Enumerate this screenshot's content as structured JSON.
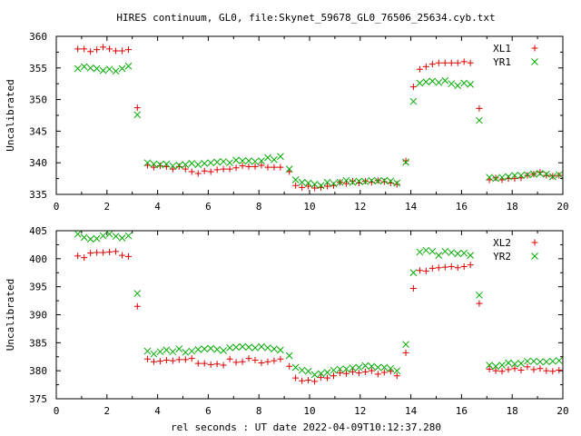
{
  "title": "HIRES continuum, GL0, file:Skynet_59678_GL0_76506_25634.cyb.txt",
  "xlabel": "rel seconds : UT date 2022-04-09T10:12:37.280",
  "colors": {
    "red": "#dd0000",
    "green": "#00aa00"
  },
  "chart_data": [
    {
      "type": "scatter",
      "ylabel": "Uncalibrated",
      "xlim": [
        0,
        20
      ],
      "ylim": [
        335,
        360
      ],
      "xticks": [
        "0",
        "2",
        "4",
        "6",
        "8",
        "10",
        "12",
        "14",
        "16",
        "18",
        "20"
      ],
      "yticks": [
        "335",
        "340",
        "345",
        "350",
        "355",
        "360"
      ],
      "legend_position": "top-right",
      "series": [
        {
          "name": "XL1",
          "color": "#dd0000",
          "marker": "plus",
          "x": [
            0.85,
            1.1,
            1.35,
            1.6,
            1.85,
            2.1,
            2.35,
            2.6,
            2.85,
            3.2,
            3.6,
            3.85,
            4.1,
            4.35,
            4.6,
            4.85,
            5.1,
            5.35,
            5.6,
            5.85,
            6.1,
            6.35,
            6.6,
            6.85,
            7.1,
            7.35,
            7.6,
            7.85,
            8.1,
            8.35,
            8.6,
            8.85,
            9.2,
            9.45,
            9.7,
            9.95,
            10.2,
            10.45,
            10.7,
            10.95,
            11.2,
            11.45,
            11.7,
            11.95,
            12.2,
            12.45,
            12.7,
            12.95,
            13.2,
            13.45,
            13.8,
            14.1,
            14.35,
            14.6,
            14.85,
            15.1,
            15.35,
            15.6,
            15.85,
            16.1,
            16.35,
            16.7,
            17.1,
            17.35,
            17.6,
            17.85,
            18.1,
            18.35,
            18.6,
            18.85,
            19.1,
            19.35,
            19.6,
            19.85
          ],
          "y": [
            358.0,
            358.0,
            357.6,
            357.9,
            358.3,
            358.0,
            357.7,
            357.7,
            357.9,
            348.7,
            339.6,
            339.3,
            339.5,
            339.4,
            339.0,
            339.4,
            339.0,
            338.6,
            338.3,
            338.7,
            338.6,
            338.9,
            339.0,
            339.0,
            339.2,
            339.5,
            339.4,
            339.4,
            339.6,
            339.3,
            339.3,
            339.3,
            338.6,
            336.4,
            336.1,
            336.3,
            336.0,
            336.1,
            336.3,
            336.4,
            336.9,
            336.7,
            337.1,
            336.8,
            337.1,
            336.9,
            337.2,
            337.0,
            336.8,
            336.6,
            340.3,
            352.0,
            354.8,
            355.2,
            355.6,
            355.8,
            355.8,
            355.8,
            355.8,
            356.0,
            355.8,
            348.6,
            337.3,
            337.6,
            337.3,
            337.5,
            337.5,
            337.6,
            338.0,
            338.2,
            338.5,
            338.0,
            337.9,
            338.0
          ]
        },
        {
          "name": "YR1",
          "color": "#00aa00",
          "marker": "cross",
          "x": [
            0.85,
            1.1,
            1.35,
            1.6,
            1.85,
            2.1,
            2.35,
            2.6,
            2.85,
            3.2,
            3.6,
            3.85,
            4.1,
            4.35,
            4.6,
            4.85,
            5.1,
            5.35,
            5.6,
            5.85,
            6.1,
            6.35,
            6.6,
            6.85,
            7.1,
            7.35,
            7.6,
            7.85,
            8.1,
            8.35,
            8.6,
            8.85,
            9.2,
            9.45,
            9.7,
            9.95,
            10.2,
            10.45,
            10.7,
            10.95,
            11.2,
            11.45,
            11.7,
            11.95,
            12.2,
            12.45,
            12.7,
            12.95,
            13.2,
            13.45,
            13.8,
            14.1,
            14.35,
            14.6,
            14.85,
            15.1,
            15.35,
            15.6,
            15.85,
            16.1,
            16.35,
            16.7,
            17.1,
            17.35,
            17.6,
            17.85,
            18.1,
            18.35,
            18.6,
            18.85,
            19.1,
            19.35,
            19.6,
            19.85
          ],
          "y": [
            354.9,
            355.2,
            355.0,
            354.9,
            354.6,
            354.8,
            354.5,
            354.9,
            355.3,
            347.6,
            340.0,
            339.8,
            339.7,
            339.8,
            339.5,
            339.6,
            339.7,
            339.9,
            339.7,
            339.9,
            340.0,
            340.1,
            340.2,
            340.0,
            340.4,
            340.3,
            340.3,
            340.2,
            340.3,
            340.8,
            340.5,
            341.0,
            339.0,
            337.3,
            336.9,
            336.8,
            336.6,
            336.4,
            336.9,
            336.7,
            336.9,
            337.2,
            336.9,
            337.1,
            337.0,
            337.2,
            337.1,
            337.2,
            337.1,
            336.8,
            340.1,
            349.7,
            352.6,
            352.8,
            352.9,
            352.7,
            353.0,
            352.5,
            352.2,
            352.6,
            352.4,
            346.7,
            337.7,
            337.5,
            337.7,
            337.8,
            338.0,
            338.0,
            338.1,
            338.2,
            338.3,
            338.2,
            337.8,
            338.1
          ]
        }
      ]
    },
    {
      "type": "scatter",
      "ylabel": "Uncalibrated",
      "xlim": [
        0,
        20
      ],
      "ylim": [
        375,
        405
      ],
      "xticks": [
        "0",
        "2",
        "4",
        "6",
        "8",
        "10",
        "12",
        "14",
        "16",
        "18",
        "20"
      ],
      "yticks": [
        "375",
        "380",
        "385",
        "390",
        "395",
        "400",
        "405"
      ],
      "legend_position": "top-right",
      "series": [
        {
          "name": "XL2",
          "color": "#dd0000",
          "marker": "plus",
          "x": [
            0.85,
            1.1,
            1.35,
            1.6,
            1.85,
            2.1,
            2.35,
            2.6,
            2.85,
            3.2,
            3.6,
            3.85,
            4.1,
            4.35,
            4.6,
            4.85,
            5.1,
            5.35,
            5.6,
            5.85,
            6.1,
            6.35,
            6.6,
            6.85,
            7.1,
            7.35,
            7.6,
            7.85,
            8.1,
            8.35,
            8.6,
            8.85,
            9.2,
            9.45,
            9.7,
            9.95,
            10.2,
            10.45,
            10.7,
            10.95,
            11.2,
            11.45,
            11.7,
            11.95,
            12.2,
            12.45,
            12.7,
            12.95,
            13.2,
            13.45,
            13.8,
            14.1,
            14.35,
            14.6,
            14.85,
            15.1,
            15.35,
            15.6,
            15.85,
            16.1,
            16.35,
            16.7,
            17.1,
            17.35,
            17.6,
            17.85,
            18.1,
            18.35,
            18.6,
            18.85,
            19.1,
            19.35,
            19.6,
            19.85
          ],
          "y": [
            400.5,
            400.2,
            401.0,
            401.1,
            401.1,
            401.2,
            401.3,
            400.6,
            400.4,
            391.5,
            382.1,
            381.6,
            381.7,
            381.9,
            381.8,
            382.0,
            382.0,
            382.2,
            381.3,
            381.3,
            381.1,
            381.2,
            381.0,
            382.1,
            381.5,
            381.6,
            382.2,
            381.9,
            381.4,
            381.6,
            381.8,
            382.1,
            380.8,
            378.7,
            378.2,
            378.3,
            378.1,
            378.8,
            378.7,
            379.1,
            379.6,
            379.5,
            379.8,
            379.6,
            379.8,
            380.0,
            379.4,
            379.7,
            379.9,
            379.1,
            383.2,
            394.7,
            397.9,
            397.8,
            398.3,
            398.4,
            398.5,
            398.6,
            398.4,
            398.6,
            398.9,
            392.0,
            380.3,
            380.0,
            379.9,
            380.2,
            380.4,
            380.1,
            380.7,
            380.2,
            380.4,
            380.0,
            379.9,
            380.1
          ]
        },
        {
          "name": "YR2",
          "color": "#00aa00",
          "marker": "cross",
          "x": [
            0.85,
            1.1,
            1.35,
            1.6,
            1.85,
            2.1,
            2.35,
            2.6,
            2.85,
            3.2,
            3.6,
            3.85,
            4.1,
            4.35,
            4.6,
            4.85,
            5.1,
            5.35,
            5.6,
            5.85,
            6.1,
            6.35,
            6.6,
            6.85,
            7.1,
            7.35,
            7.6,
            7.85,
            8.1,
            8.35,
            8.6,
            8.85,
            9.2,
            9.45,
            9.7,
            9.95,
            10.2,
            10.45,
            10.7,
            10.95,
            11.2,
            11.45,
            11.7,
            11.95,
            12.2,
            12.45,
            12.7,
            12.95,
            13.2,
            13.45,
            13.8,
            14.1,
            14.35,
            14.6,
            14.85,
            15.1,
            15.35,
            15.6,
            15.85,
            16.1,
            16.35,
            16.7,
            17.1,
            17.35,
            17.6,
            17.85,
            18.1,
            18.35,
            18.6,
            18.85,
            19.1,
            19.35,
            19.6,
            19.85
          ],
          "y": [
            404.4,
            403.8,
            403.5,
            403.6,
            404.1,
            404.4,
            404.0,
            403.7,
            404.1,
            393.8,
            383.5,
            383.0,
            383.4,
            383.7,
            383.4,
            383.9,
            383.3,
            383.5,
            383.8,
            383.9,
            384.0,
            383.8,
            383.6,
            384.1,
            384.2,
            384.3,
            384.2,
            384.1,
            384.3,
            384.1,
            383.9,
            383.7,
            382.7,
            380.6,
            380.1,
            379.9,
            379.3,
            379.5,
            379.7,
            380.1,
            380.3,
            380.3,
            380.5,
            380.6,
            380.9,
            380.8,
            380.6,
            380.6,
            380.4,
            380.0,
            384.7,
            397.5,
            401.2,
            401.5,
            401.3,
            400.6,
            401.3,
            401.1,
            400.9,
            401.0,
            400.6,
            393.5,
            381.0,
            380.8,
            381.0,
            381.4,
            381.2,
            381.3,
            381.7,
            381.7,
            381.6,
            381.6,
            381.7,
            381.8
          ]
        }
      ]
    }
  ]
}
